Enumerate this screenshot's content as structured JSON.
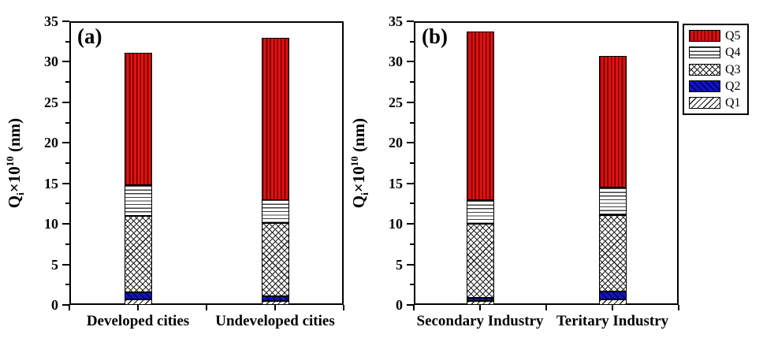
{
  "figure_background": "#ffffff",
  "axis_color": "#000000",
  "chart_data": [
    {
      "type": "bar",
      "stacked": true,
      "panel_label": "(a)",
      "title": "",
      "xlabel": "",
      "ylabel_parts": {
        "symbol": "Q",
        "subscript": "i",
        "multiplier": "×10",
        "exponent": "10",
        "unit": "(nm)"
      },
      "ylabel_text": "Qi×10^10 (nm)",
      "ylim": [
        0,
        35
      ],
      "yticks": [
        0,
        5,
        10,
        15,
        20,
        25,
        30,
        35
      ],
      "minor_ytick_step": 2.5,
      "grid": false,
      "legend_visible": false,
      "categories": [
        "Developed cities",
        "Undeveloped cities"
      ],
      "series": [
        {
          "name": "Q1",
          "values": [
            0.7,
            0.5
          ]
        },
        {
          "name": "Q2",
          "values": [
            0.9,
            0.55
          ]
        },
        {
          "name": "Q3",
          "values": [
            9.4,
            9.05
          ]
        },
        {
          "name": "Q4",
          "values": [
            3.8,
            2.9
          ]
        },
        {
          "name": "Q5",
          "values": [
            16.3,
            20.0
          ]
        }
      ],
      "stack_totals": [
        31.1,
        33.0
      ]
    },
    {
      "type": "bar",
      "stacked": true,
      "panel_label": "(b)",
      "title": "",
      "xlabel": "",
      "ylabel_parts": {
        "symbol": "Q",
        "subscript": "i",
        "multiplier": "×10",
        "exponent": "10",
        "unit": "(nm)"
      },
      "ylabel_text": "Qi×10^10 (nm)",
      "ylim": [
        0,
        35
      ],
      "yticks": [
        0,
        5,
        10,
        15,
        20,
        25,
        30,
        35
      ],
      "minor_ytick_step": 2.5,
      "grid": false,
      "legend_visible": true,
      "categories": [
        "Secondary Industry",
        "Teritary Industry"
      ],
      "series": [
        {
          "name": "Q1",
          "values": [
            0.5,
            0.7
          ]
        },
        {
          "name": "Q2",
          "values": [
            0.4,
            1.0
          ]
        },
        {
          "name": "Q3",
          "values": [
            9.1,
            9.4
          ]
        },
        {
          "name": "Q4",
          "values": [
            2.9,
            3.4
          ]
        },
        {
          "name": "Q5",
          "values": [
            20.8,
            16.2
          ]
        }
      ],
      "stack_totals": [
        33.7,
        30.7
      ]
    }
  ],
  "legend": {
    "entries": [
      "Q5",
      "Q4",
      "Q3",
      "Q2",
      "Q1"
    ],
    "position": "outside-top-right"
  },
  "series_styles": {
    "Q5": {
      "fill": "#e11212",
      "hatch": "vertical",
      "hatch_color": "#7a0000"
    },
    "Q4": {
      "fill": "#ffffff",
      "hatch": "horizontal",
      "hatch_color": "#3d3d3d"
    },
    "Q3": {
      "fill": "#ffffff",
      "hatch": "cross",
      "hatch_color": "#1f1f1f"
    },
    "Q2": {
      "fill": "#1212cc",
      "hatch": "diag-down",
      "hatch_color": "#000060"
    },
    "Q1": {
      "fill": "#ffffff",
      "hatch": "diag-up",
      "hatch_color": "#1f1f1f"
    }
  }
}
